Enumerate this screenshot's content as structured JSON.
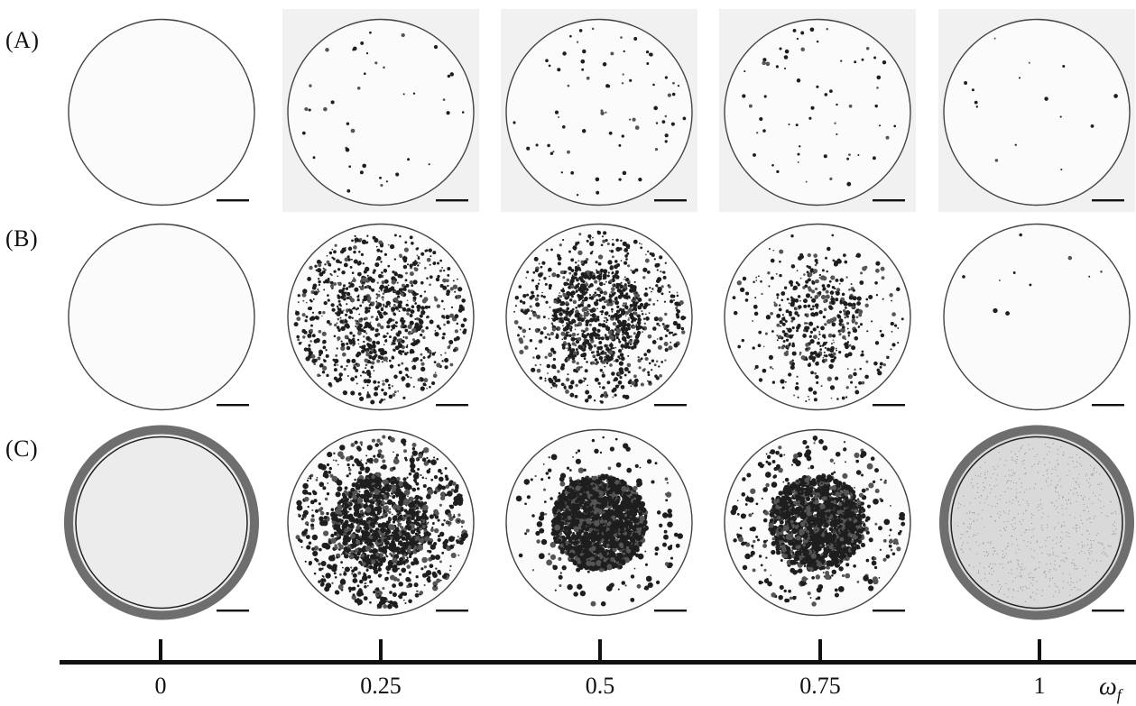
{
  "figure": {
    "rows": [
      {
        "label": "(A)",
        "style": "sparse"
      },
      {
        "label": "(B)",
        "style": "medium"
      },
      {
        "label": "(C)",
        "style": "dense"
      }
    ],
    "axis": {
      "ticks": [
        "0",
        "0.25",
        "0.5",
        "0.75",
        "1"
      ],
      "variable": "ω",
      "variable_subscript": "f"
    },
    "colors": {
      "background": "#ffffff",
      "ink": "#111111",
      "particle": "#2a2a2a",
      "ring": "#6e6e6e"
    }
  }
}
